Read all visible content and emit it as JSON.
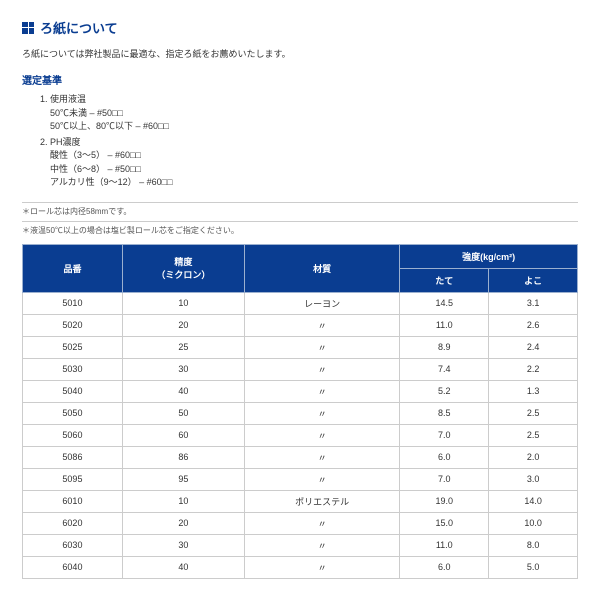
{
  "title": "ろ紙について",
  "intro": "ろ紙については弊社製品に最適な、指定ろ紙をお薦めいたします。",
  "criteria_heading": "選定基準",
  "criteria": [
    {
      "label": "使用液温",
      "lines": [
        "50℃未満 – #50□□",
        "50℃以上、80℃以下 – #60□□"
      ]
    },
    {
      "label": "PH濃度",
      "lines": [
        "酸性（3〜5） – #60□□",
        "中性（6〜8） – #50□□",
        "アルカリ性（9〜12） – #60□□"
      ]
    }
  ],
  "note1": "＊ロール芯は内径58mmです。",
  "note2": "＊液温50℃以上の場合は塩ビ製ロール芯をご指定ください。",
  "table": {
    "headers": {
      "code": "品番",
      "precision": "精度",
      "precision_sub": "（ミクロン）",
      "material": "材質",
      "strength": "強度(kg/cm²)",
      "tate": "たて",
      "yoko": "よこ"
    },
    "rows": [
      {
        "code": "5010",
        "prec": "10",
        "mat": "レーヨン",
        "tate": "14.5",
        "yoko": "3.1"
      },
      {
        "code": "5020",
        "prec": "20",
        "mat": "〃",
        "tate": "11.0",
        "yoko": "2.6"
      },
      {
        "code": "5025",
        "prec": "25",
        "mat": "〃",
        "tate": "8.9",
        "yoko": "2.4"
      },
      {
        "code": "5030",
        "prec": "30",
        "mat": "〃",
        "tate": "7.4",
        "yoko": "2.2"
      },
      {
        "code": "5040",
        "prec": "40",
        "mat": "〃",
        "tate": "5.2",
        "yoko": "1.3"
      },
      {
        "code": "5050",
        "prec": "50",
        "mat": "〃",
        "tate": "8.5",
        "yoko": "2.5"
      },
      {
        "code": "5060",
        "prec": "60",
        "mat": "〃",
        "tate": "7.0",
        "yoko": "2.5"
      },
      {
        "code": "5086",
        "prec": "86",
        "mat": "〃",
        "tate": "6.0",
        "yoko": "2.0"
      },
      {
        "code": "5095",
        "prec": "95",
        "mat": "〃",
        "tate": "7.0",
        "yoko": "3.0"
      },
      {
        "code": "6010",
        "prec": "10",
        "mat": "ポリエステル",
        "tate": "19.0",
        "yoko": "14.0"
      },
      {
        "code": "6020",
        "prec": "20",
        "mat": "〃",
        "tate": "15.0",
        "yoko": "10.0"
      },
      {
        "code": "6030",
        "prec": "30",
        "mat": "〃",
        "tate": "11.0",
        "yoko": "8.0"
      },
      {
        "code": "6040",
        "prec": "40",
        "mat": "〃",
        "tate": "6.0",
        "yoko": "5.0"
      }
    ]
  }
}
